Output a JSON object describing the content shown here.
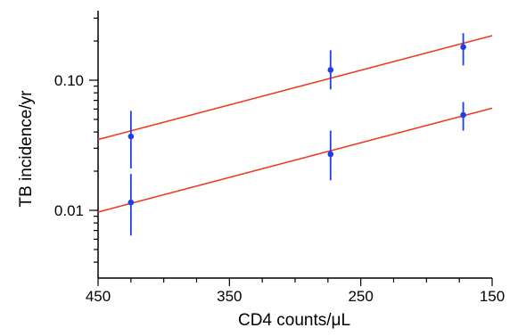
{
  "chart_data": {
    "type": "scatter",
    "title": "",
    "xlabel": "CD4 counts/μL",
    "ylabel": "TB incidence/yr",
    "x_reversed": true,
    "y_scale": "log",
    "xlim": [
      450,
      150
    ],
    "ylim": [
      0.002,
      0.45
    ],
    "x_ticks": [
      450,
      350,
      250,
      150
    ],
    "x_tick_labels": [
      "450",
      "350",
      "250",
      "150"
    ],
    "y_ticks": [
      0.01,
      0.1
    ],
    "y_tick_labels": [
      "0.01",
      "0.10"
    ],
    "grid": false,
    "legend": "none",
    "series": [
      {
        "points": [
          {
            "x": 425,
            "y": 0.037,
            "lo": 0.021,
            "hi": 0.058
          },
          {
            "x": 273,
            "y": 0.12,
            "lo": 0.085,
            "hi": 0.17
          },
          {
            "x": 172,
            "y": 0.18,
            "lo": 0.13,
            "hi": 0.23
          }
        ],
        "fit": {
          "x": [
            450,
            150
          ],
          "y": [
            0.035,
            0.22
          ]
        }
      },
      {
        "points": [
          {
            "x": 425,
            "y": 0.0115,
            "lo": 0.0064,
            "hi": 0.019
          },
          {
            "x": 273,
            "y": 0.027,
            "lo": 0.017,
            "hi": 0.041
          },
          {
            "x": 172,
            "y": 0.054,
            "lo": 0.041,
            "hi": 0.068
          }
        ],
        "fit": {
          "x": [
            450,
            150
          ],
          "y": [
            0.0097,
            0.061
          ]
        }
      }
    ],
    "colors": {
      "points": "#1f3fe6",
      "fit": "#f03c20",
      "axis": "#000000"
    }
  }
}
